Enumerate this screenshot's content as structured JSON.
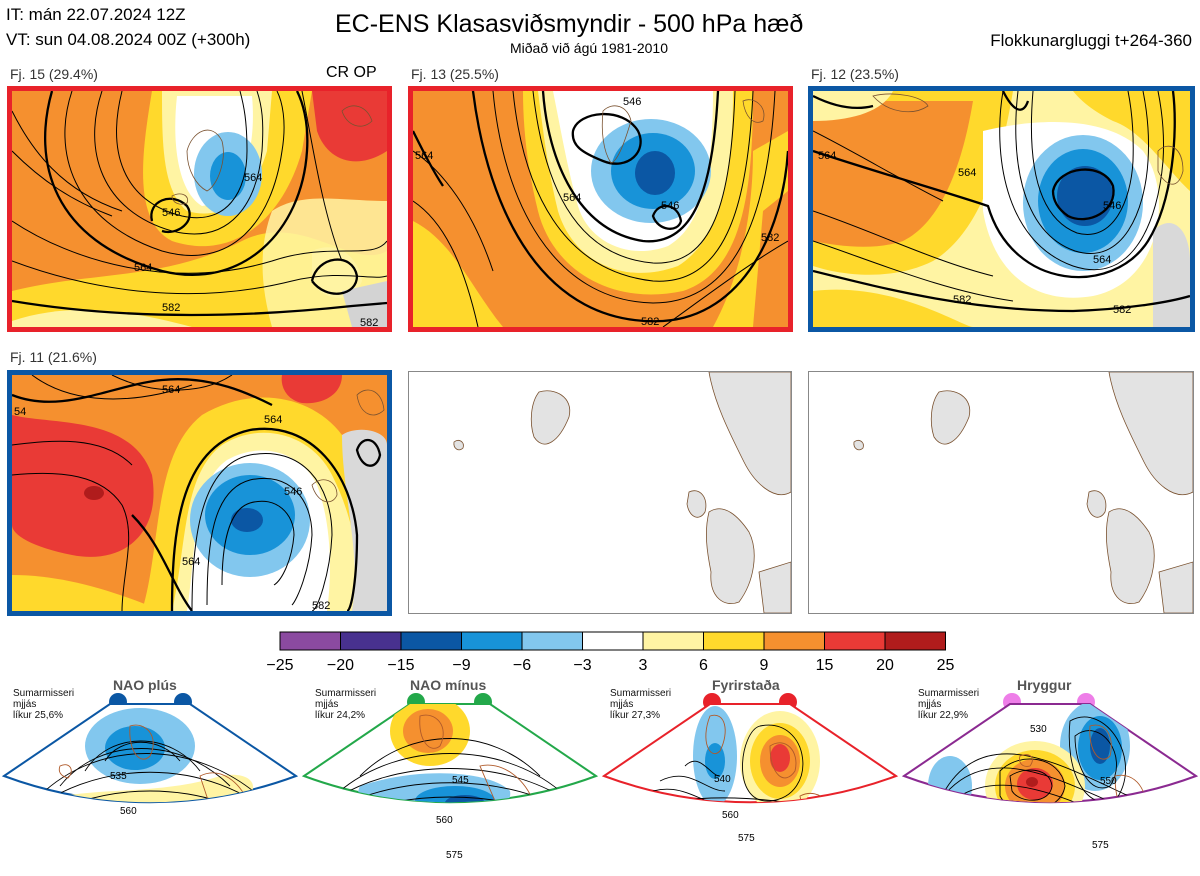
{
  "header": {
    "it_line": "IT: mán 22.07.2024 12Z",
    "vt_line": "VT: sun 04.08.2024 00Z  (+300h)",
    "title": "EC-ENS Klasasviðsmyndir - 500 hPa hæð",
    "subtitle": "Miðað við ágú 1981-2010",
    "window_label": "Flokkunargluggi t+264-360"
  },
  "panels": [
    {
      "label": "Fj. 15 (29.4%)",
      "tag": "CR OP",
      "frame_color": "#e8222a",
      "contours": [
        "546",
        "564",
        "564",
        "582",
        "582"
      ]
    },
    {
      "label": "Fj. 13 (25.5%)",
      "frame_color": "#e8222a",
      "contours": [
        "546",
        "546",
        "564",
        "564",
        "582",
        "582"
      ]
    },
    {
      "label": "Fj. 12 (23.5%)",
      "frame_color": "#0b57a4",
      "contours": [
        "546",
        "564",
        "564",
        "564",
        "582",
        "582"
      ]
    },
    {
      "label": "Fj. 11 (21.6%)",
      "frame_color": "#0b57a4",
      "contours": [
        "564",
        "564",
        "546",
        "564",
        "582",
        "54"
      ]
    }
  ],
  "colorbar": {
    "ticks": [
      "−25",
      "−20",
      "−15",
      "−9",
      "−6",
      "−3",
      "3",
      "6",
      "9",
      "15",
      "20",
      "25"
    ],
    "colors": [
      "#8b4aa0",
      "#48318f",
      "#0b57a4",
      "#1893d8",
      "#82c7ee",
      "#ffffff",
      "#fff4a3",
      "#ffd92c",
      "#f5902f",
      "#e93a36",
      "#b01c1c"
    ]
  },
  "regimes": [
    {
      "name": "NAO plús",
      "season": "Sumarmisseri",
      "smooth": "mjjás",
      "prob": "líkur 25,6%",
      "dot_color": "#0b57a4",
      "frame_color": "#0b57a4",
      "contours": [
        "535",
        "560"
      ]
    },
    {
      "name": "NAO mínus",
      "season": "Sumarmisseri",
      "smooth": "mjjás",
      "prob": "líkur 24,2%",
      "dot_color": "#23a84a",
      "frame_color": "#23a84a",
      "contours": [
        "545",
        "560",
        "575"
      ]
    },
    {
      "name": "Fyrirstaða",
      "season": "Sumarmisseri",
      "smooth": "mjjás",
      "prob": "líkur 27,3%",
      "dot_color": "#e8222a",
      "frame_color": "#e8222a",
      "contours": [
        "540",
        "560",
        "575"
      ]
    },
    {
      "name": "Hryggur",
      "season": "Sumarmisseri",
      "smooth": "mjjás",
      "prob": "líkur 22,9%",
      "dot_color": "#ee7ee8",
      "frame_color": "#8b2a91",
      "contours": [
        "530",
        "550",
        "575"
      ]
    }
  ]
}
